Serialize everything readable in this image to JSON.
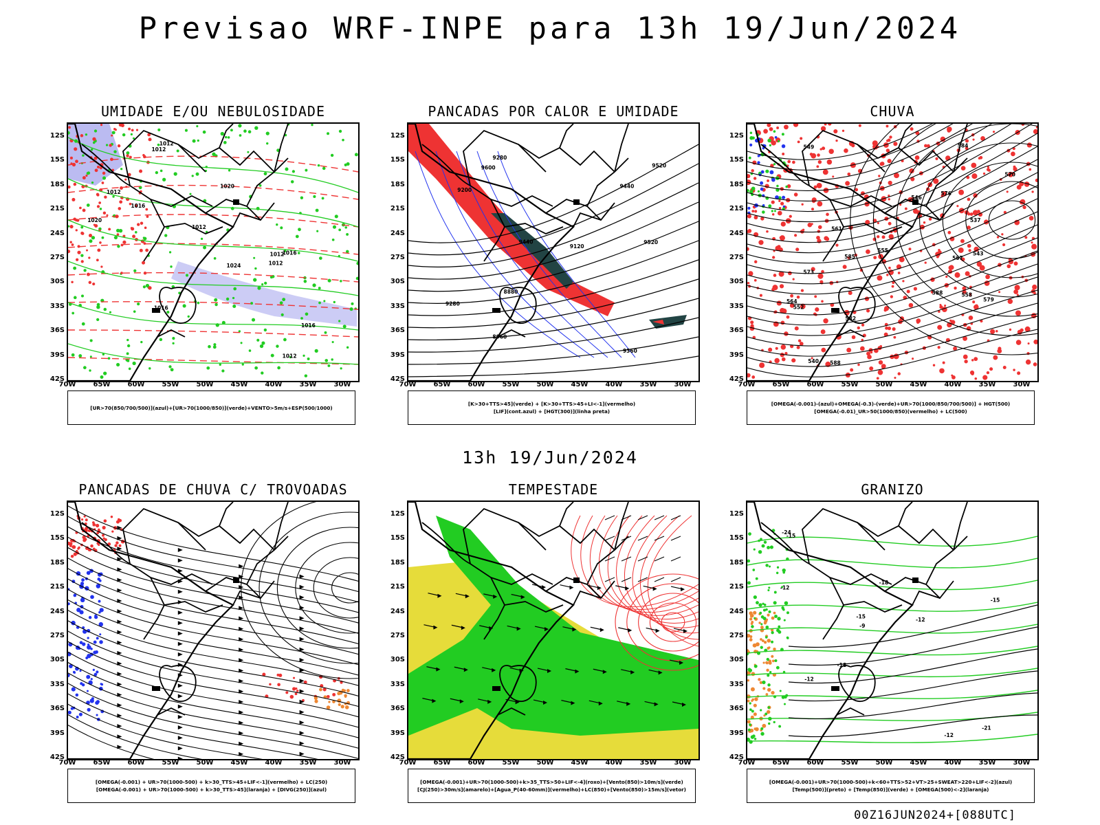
{
  "title": "Previsao WRF-INPE  para 13h 19/Jun/2024",
  "subtitle": "13h 19/Jun/2024",
  "footer": "00Z16JUN2024+[088UTC]",
  "axes": {
    "lat_labels": [
      "12S",
      "15S",
      "18S",
      "21S",
      "24S",
      "27S",
      "30S",
      "33S",
      "36S",
      "39S",
      "42S"
    ],
    "lon_labels": [
      "70W",
      "65W",
      "60W",
      "55W",
      "50W",
      "45W",
      "40W",
      "35W",
      "30W"
    ]
  },
  "colors": {
    "red": "#ee3333",
    "green": "#22cc22",
    "blue": "#2233ee",
    "lavender": "#aaaaee",
    "dark": "#224444",
    "yellow": "#e6dc3a",
    "orange": "#ee8833"
  },
  "panels": [
    {
      "title": "UMIDADE E/OU NEBULOSIDADE",
      "legend": [
        "[UR>70(850/700/500)](azul)+[UR>70(1000/850)](verde)+VENTO>5m/s+ESP(500/1000)"
      ],
      "labels": [
        "1016",
        "1012",
        "1012",
        "1012",
        "1016",
        "1020",
        "1020",
        "1024",
        "1016",
        "1012",
        "1012",
        "1012",
        "1012",
        "1016"
      ]
    },
    {
      "title": "PANCADAS POR CALOR E UMIDADE",
      "legend": [
        "[K>30+TTS>45](verde) + [K>30+TTS>45+LI<-1](vermelho)",
        "[LIF](cont.azul) + [HGT(300)](linha preta)"
      ],
      "labels": [
        "9600",
        "9520",
        "9440",
        "9360",
        "9280",
        "9200",
        "9120",
        "8960",
        "8880",
        "9520",
        "9440",
        "9280"
      ]
    },
    {
      "title": "CHUVA",
      "legend": [
        "[OMEGA(-0.001)-(azul)+OMEGA(-0.3)-(verde)+UR>70(1000/850/700/500)] + HGT(500)",
        "[OMEGA(-0.01)_UR>50(1000/850)(vermelho) + LC(500)"
      ],
      "labels": [
        "588",
        "588",
        "585",
        "582",
        "579",
        "576",
        "573",
        "570",
        "567",
        "564",
        "561",
        "558",
        "555",
        "552",
        "549",
        "546",
        "543",
        "540",
        "537",
        "584"
      ]
    },
    {
      "title": "PANCADAS DE CHUVA C/ TROVOADAS",
      "legend": [
        "[OMEGA(-0.001) + UR>70(1000-500) + k>30_TTS>45+LIF<-1](vermelho) + LC(250)",
        "[OMEGA(-0.001) + UR>70(1000-500) + k>30_TTS>45](laranja) + [DIVG(250)](azul)"
      ],
      "labels": []
    },
    {
      "title": "TEMPESTADE",
      "legend": [
        "[OMEGA(-0.001)+UR>70(1000-500)+k>35_TTS>50+LIF<-4](roxo)+[Vento(850)>10m/s](verde)",
        "[CJ(250)>30m/s](amarelo)+[Agua_P(40-60mm)](vermelho)+LC(850)+[Vento(850)>15m/s](vetor)"
      ],
      "labels": []
    },
    {
      "title": "GRANIZO",
      "legend": [
        "[OMEGA(-0.001)+UR>70(1000-500)+k<60+TTS>52+VT>25+SWEAT>220+LIF<-2](azul)",
        "[Temp(500)](preto) + [Temp(850)](verde) + [OMEGA(500)<-2](laranja)"
      ],
      "labels": [
        "-9",
        "-12",
        "-12",
        "-15",
        "-18",
        "-18",
        "-21",
        "-24",
        "-15",
        "-12",
        "-12",
        "-15"
      ]
    }
  ]
}
